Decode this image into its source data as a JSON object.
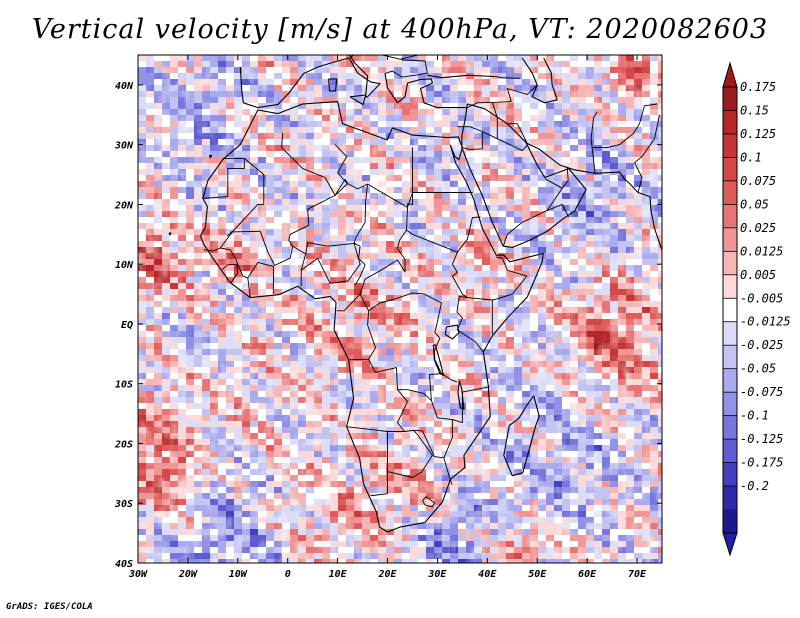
{
  "title": "Vertical velocity [m/s] at 400hPa, VT: 2020082603",
  "credit": "GrADS: IGES/COLA",
  "map": {
    "lon_labels": [
      "30W",
      "20W",
      "10W",
      "0",
      "10E",
      "20E",
      "30E",
      "40E",
      "50E",
      "60E",
      "70E"
    ],
    "lat_labels": [
      "40N",
      "30N",
      "20N",
      "10N",
      "EQ",
      "10S",
      "20S",
      "30S",
      "40S"
    ],
    "lon_range": [
      -30,
      75
    ],
    "lat_range": [
      -40,
      45
    ]
  },
  "colorbar": {
    "labels": [
      "0.175",
      "0.15",
      "0.125",
      "0.1",
      "0.075",
      "0.05",
      "0.025",
      "0.0125",
      "0.005",
      "-0.005",
      "-0.0125",
      "-0.025",
      "-0.05",
      "-0.075",
      "-0.1",
      "-0.125",
      "-0.175",
      "-0.2"
    ],
    "colors": [
      "#9b1c1c",
      "#b32828",
      "#c43636",
      "#d44848",
      "#df5c5c",
      "#e87575",
      "#f09595",
      "#f6b5b5",
      "#fbd9d9",
      "#ffffff",
      "#dcdcf8",
      "#c3c3f2",
      "#aaaaee",
      "#9191e6",
      "#7777dd",
      "#5c5cd0",
      "#4040c0",
      "#2a2aaa",
      "#1a1a90"
    ],
    "arrow_top": "#a01818",
    "arrow_bottom": "#2020a0"
  }
}
